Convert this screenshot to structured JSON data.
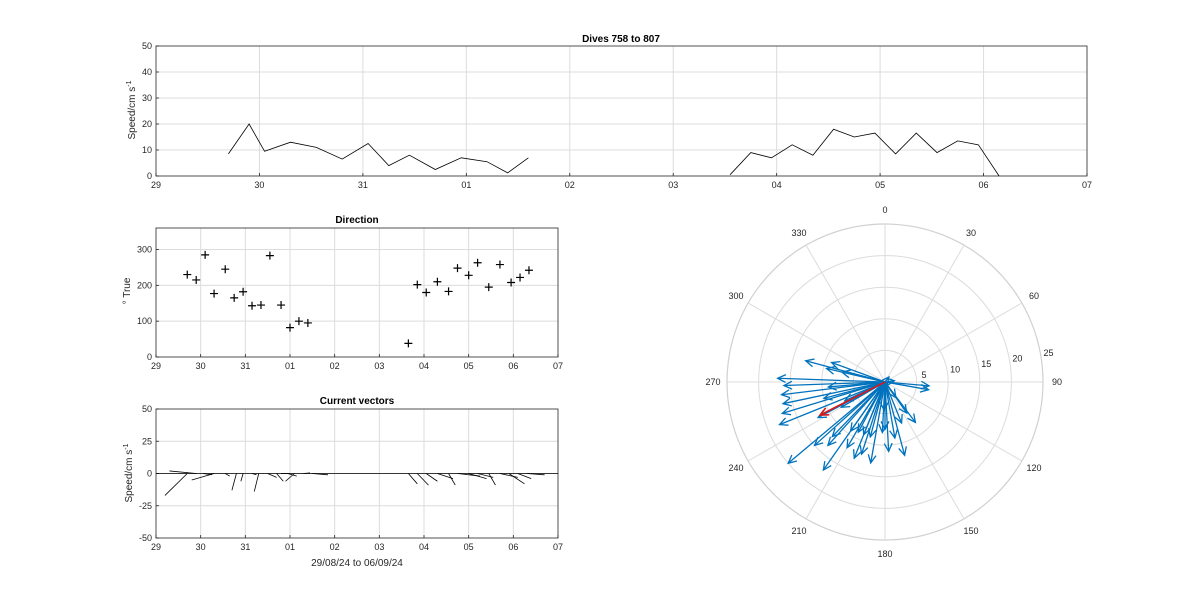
{
  "chart_data": [
    {
      "type": "line",
      "title": "Dives 758 to 807",
      "ylabel": "Speed/cm s",
      "ylabel_sup": "-1",
      "xlim": [
        0,
        9
      ],
      "ylim": [
        0,
        50
      ],
      "yticks": [
        0,
        10,
        20,
        30,
        40,
        50
      ],
      "xtick_labels": [
        "29",
        "30",
        "31",
        "01",
        "02",
        "03",
        "04",
        "05",
        "06",
        "07"
      ],
      "grid": true,
      "segments": [
        {
          "x": [
            0.7,
            0.9,
            1.05,
            1.3,
            1.55,
            1.8,
            2.05,
            2.25,
            2.45,
            2.7,
            2.95,
            3.2,
            3.4,
            3.6
          ],
          "y": [
            8.5,
            20,
            9.5,
            13,
            11,
            6.5,
            12.5,
            4,
            8,
            2.5,
            7,
            5.5,
            1.2,
            7
          ]
        },
        {
          "x": [
            5.55,
            5.75,
            5.95,
            6.15,
            6.35,
            6.55,
            6.75,
            6.95,
            7.15,
            7.35,
            7.55,
            7.75,
            7.95,
            8.15
          ],
          "y": [
            0.5,
            9,
            7,
            12,
            8,
            18,
            15,
            16.5,
            8.5,
            16.5,
            9,
            13.5,
            12,
            0
          ]
        }
      ]
    },
    {
      "type": "scatter",
      "title": "Direction",
      "ylabel": "° True",
      "xlim": [
        0,
        9
      ],
      "ylim": [
        0,
        360
      ],
      "yticks": [
        0,
        100,
        200,
        300
      ],
      "xtick_labels": [
        "29",
        "30",
        "31",
        "01",
        "02",
        "03",
        "04",
        "05",
        "06",
        "07"
      ],
      "grid": true,
      "points": [
        {
          "x": 0.7,
          "y": 230
        },
        {
          "x": 0.9,
          "y": 215
        },
        {
          "x": 1.1,
          "y": 285
        },
        {
          "x": 1.3,
          "y": 177
        },
        {
          "x": 1.55,
          "y": 245
        },
        {
          "x": 1.75,
          "y": 165
        },
        {
          "x": 1.95,
          "y": 182
        },
        {
          "x": 2.15,
          "y": 143
        },
        {
          "x": 2.35,
          "y": 145
        },
        {
          "x": 2.55,
          "y": 283
        },
        {
          "x": 2.8,
          "y": 145
        },
        {
          "x": 3.0,
          "y": 82
        },
        {
          "x": 3.2,
          "y": 100
        },
        {
          "x": 3.4,
          "y": 95
        },
        {
          "x": 5.65,
          "y": 38
        },
        {
          "x": 5.85,
          "y": 202
        },
        {
          "x": 6.05,
          "y": 180
        },
        {
          "x": 6.3,
          "y": 210
        },
        {
          "x": 6.55,
          "y": 183
        },
        {
          "x": 6.75,
          "y": 248
        },
        {
          "x": 7.0,
          "y": 228
        },
        {
          "x": 7.2,
          "y": 263
        },
        {
          "x": 7.45,
          "y": 195
        },
        {
          "x": 7.7,
          "y": 258
        },
        {
          "x": 7.95,
          "y": 208
        },
        {
          "x": 8.15,
          "y": 222
        },
        {
          "x": 8.35,
          "y": 242
        }
      ]
    },
    {
      "type": "quiver",
      "title": "Current vectors",
      "xlabel": "29/08/24 to 06/09/24",
      "ylabel": "Speed/cm s",
      "ylabel_sup": "-1",
      "xlim": [
        0,
        9
      ],
      "ylim": [
        -50,
        50
      ],
      "yticks": [
        -50,
        -25,
        0,
        25,
        50
      ],
      "xtick_labels": [
        "29",
        "30",
        "31",
        "01",
        "02",
        "03",
        "04",
        "05",
        "06",
        "07"
      ],
      "grid": true,
      "vectors": [
        {
          "x": 0.7,
          "dx": -0.5,
          "dy": -17
        },
        {
          "x": 0.9,
          "dx": -0.6,
          "dy": 2
        },
        {
          "x": 1.05,
          "dx": 0.2,
          "dy": -1
        },
        {
          "x": 1.3,
          "dx": -0.5,
          "dy": -5
        },
        {
          "x": 1.55,
          "dx": 0.1,
          "dy": -2
        },
        {
          "x": 1.8,
          "dx": -0.1,
          "dy": -13
        },
        {
          "x": 1.95,
          "dx": -0.05,
          "dy": -6
        },
        {
          "x": 2.15,
          "dx": 0.1,
          "dy": -1
        },
        {
          "x": 2.3,
          "dx": -0.1,
          "dy": -14
        },
        {
          "x": 2.5,
          "dx": 0.2,
          "dy": -3
        },
        {
          "x": 2.7,
          "dx": 0.15,
          "dy": -6
        },
        {
          "x": 2.8,
          "dx": 0.2,
          "dy": 0
        },
        {
          "x": 2.95,
          "dx": 0.2,
          "dy": -2
        },
        {
          "x": 3.1,
          "dx": -0.2,
          "dy": -6
        },
        {
          "x": 3.3,
          "dx": 0.15,
          "dy": 0.5
        },
        {
          "x": 3.5,
          "dx": 0.35,
          "dy": -1
        },
        {
          "x": 5.65,
          "dx": 0.2,
          "dy": -8
        },
        {
          "x": 5.85,
          "dx": 0.25,
          "dy": -9
        },
        {
          "x": 6.05,
          "dx": 0.25,
          "dy": -6
        },
        {
          "x": 6.3,
          "dx": 0.35,
          "dy": -4
        },
        {
          "x": 6.55,
          "dx": 0.15,
          "dy": -9
        },
        {
          "x": 6.75,
          "dx": 0.5,
          "dy": -2
        },
        {
          "x": 7.0,
          "dx": 0.4,
          "dy": -4
        },
        {
          "x": 7.2,
          "dx": 0.35,
          "dy": -3
        },
        {
          "x": 7.45,
          "dx": 0.15,
          "dy": -9
        },
        {
          "x": 7.7,
          "dx": 0.4,
          "dy": -3
        },
        {
          "x": 7.9,
          "dx": 0.35,
          "dy": -8
        },
        {
          "x": 8.1,
          "dx": 0.3,
          "dy": -4
        },
        {
          "x": 8.3,
          "dx": 0.4,
          "dy": -1
        }
      ]
    },
    {
      "type": "polar-compass",
      "angle_labels": [
        "0",
        "30",
        "60",
        "90",
        "120",
        "150",
        "180",
        "210",
        "240",
        "270",
        "300",
        "330"
      ],
      "radial_ticks": [
        5,
        10,
        15,
        20,
        25
      ],
      "rmax": 25,
      "vector_color": "#0072bd",
      "mean_color": "#d7191c",
      "vectors": [
        {
          "deg": 230,
          "mag": 20
        },
        {
          "deg": 215,
          "mag": 9.5
        },
        {
          "deg": 285,
          "mag": 13
        },
        {
          "deg": 177,
          "mag": 11
        },
        {
          "deg": 245,
          "mag": 7
        },
        {
          "deg": 165,
          "mag": 12
        },
        {
          "deg": 182,
          "mag": 4.5
        },
        {
          "deg": 143,
          "mag": 8
        },
        {
          "deg": 145,
          "mag": 3
        },
        {
          "deg": 283,
          "mag": 7
        },
        {
          "deg": 145,
          "mag": 6
        },
        {
          "deg": 82,
          "mag": 1.5
        },
        {
          "deg": 100,
          "mag": 7
        },
        {
          "deg": 95,
          "mag": 7
        },
        {
          "deg": 38,
          "mag": 1
        },
        {
          "deg": 202,
          "mag": 9
        },
        {
          "deg": 180,
          "mag": 7.5
        },
        {
          "deg": 210,
          "mag": 12
        },
        {
          "deg": 183,
          "mag": 8
        },
        {
          "deg": 248,
          "mag": 18
        },
        {
          "deg": 228,
          "mag": 15
        },
        {
          "deg": 263,
          "mag": 16.5
        },
        {
          "deg": 195,
          "mag": 9
        },
        {
          "deg": 258,
          "mag": 16.5
        },
        {
          "deg": 208,
          "mag": 9
        },
        {
          "deg": 222,
          "mag": 13.5
        },
        {
          "deg": 242,
          "mag": 12
        },
        {
          "deg": 272,
          "mag": 17
        },
        {
          "deg": 268,
          "mag": 16
        },
        {
          "deg": 253,
          "mag": 17
        },
        {
          "deg": 224,
          "mag": 12
        },
        {
          "deg": 202,
          "mag": 13
        },
        {
          "deg": 190,
          "mag": 13
        },
        {
          "deg": 170,
          "mag": 9
        },
        {
          "deg": 158,
          "mag": 7
        },
        {
          "deg": 198,
          "mag": 12
        },
        {
          "deg": 215,
          "mag": 17
        },
        {
          "deg": 240,
          "mag": 8
        },
        {
          "deg": 255,
          "mag": 10
        },
        {
          "deg": 290,
          "mag": 9
        },
        {
          "deg": 283,
          "mag": 9.5
        },
        {
          "deg": 265,
          "mag": 9
        }
      ],
      "mean_vector": {
        "deg": 243,
        "mag": 11.5
      }
    }
  ]
}
